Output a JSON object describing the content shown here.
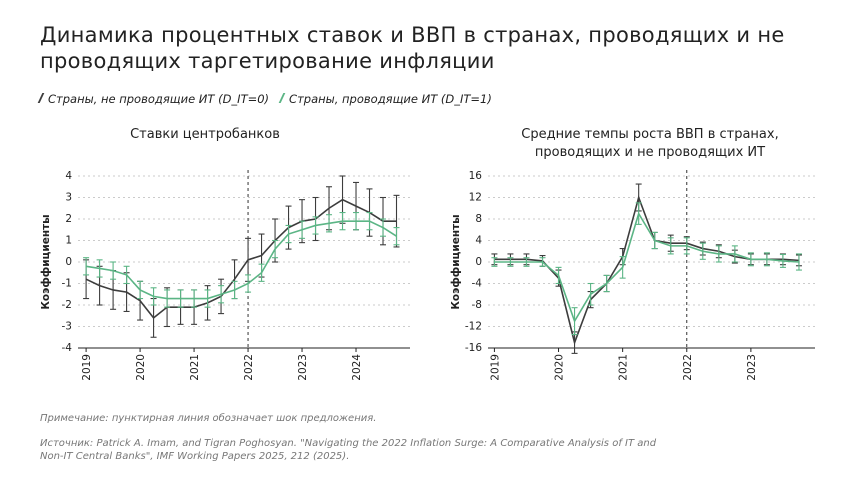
{
  "title": "Динамика процентных ставок и ВВП в странах, проводящих и не проводящих таргетирование инфляции",
  "note": "Примечание: пунктирная линия обозначает шок предложения.",
  "source": "Источник: Patrick A. Imam, and Tigran Poghosyan. \"Navigating the 2022 Inflation Surge: A Comparative Analysis of IT and Non-IT Central Banks\", IMF Working Papers 2025, 212 (2025).",
  "chart_data": [
    {
      "type": "line",
      "title": "Ставки центробанков",
      "ylabel": "Коэффициенты",
      "x": [
        2019,
        2019.25,
        2019.5,
        2019.75,
        2020,
        2020.25,
        2020.5,
        2020.75,
        2021,
        2021.25,
        2021.5,
        2021.75,
        2022,
        2022.25,
        2022.5,
        2022.75,
        2023,
        2023.25,
        2023.5,
        2023.75,
        2024,
        2024.25,
        2024.5,
        2024.75
      ],
      "series": [
        {
          "name": "Страны, не проводящие ИТ (D_IT=0)",
          "color": "#3d3d3d",
          "values": [
            -0.8,
            -1.1,
            -1.3,
            -1.4,
            -1.8,
            -2.6,
            -2.1,
            -2.1,
            -2.1,
            -1.9,
            -1.6,
            -0.8,
            0.1,
            0.3,
            1.0,
            1.6,
            1.9,
            2.0,
            2.5,
            2.9,
            2.6,
            2.3,
            1.9,
            1.9
          ],
          "errors": [
            0.9,
            0.9,
            0.9,
            0.9,
            0.9,
            0.9,
            0.9,
            0.8,
            0.8,
            0.8,
            0.8,
            0.9,
            1.0,
            1.0,
            1.0,
            1.0,
            1.0,
            1.0,
            1.0,
            1.1,
            1.1,
            1.1,
            1.1,
            1.2
          ]
        },
        {
          "name": "Страны, проводящие ИТ (D_IT=1)",
          "color": "#5bb585",
          "values": [
            -0.2,
            -0.3,
            -0.4,
            -0.6,
            -1.3,
            -1.6,
            -1.7,
            -1.7,
            -1.7,
            -1.7,
            -1.5,
            -1.3,
            -1.0,
            -0.5,
            0.6,
            1.3,
            1.5,
            1.7,
            1.8,
            1.9,
            1.9,
            1.9,
            1.6,
            1.2
          ],
          "errors": [
            0.4,
            0.4,
            0.4,
            0.4,
            0.4,
            0.4,
            0.4,
            0.4,
            0.4,
            0.4,
            0.4,
            0.4,
            0.4,
            0.4,
            0.4,
            0.4,
            0.4,
            0.4,
            0.4,
            0.4,
            0.4,
            0.4,
            0.4,
            0.4
          ]
        }
      ],
      "xlim": [
        2018.85,
        2025
      ],
      "xticks": [
        2019,
        2020,
        2021,
        2022,
        2023,
        2024
      ],
      "ylim": [
        -4,
        4
      ],
      "yticks": [
        -4,
        -3,
        -2,
        -1,
        0,
        1,
        2,
        3,
        4
      ],
      "grid": true,
      "vline": 2022
    },
    {
      "type": "line",
      "title": "Средние темпы роста ВВП в странах, проводящих и не проводящих ИТ",
      "ylabel": "Коэффициенты",
      "x": [
        2019,
        2019.25,
        2019.5,
        2019.75,
        2020,
        2020.25,
        2020.5,
        2020.75,
        2021,
        2021.25,
        2021.5,
        2021.75,
        2022,
        2022.25,
        2022.5,
        2022.75,
        2023,
        2023.25,
        2023.5,
        2023.75
      ],
      "series": [
        {
          "name": "Страны, не проводящие ИТ (D_IT=0)",
          "color": "#3d3d3d",
          "values": [
            0.5,
            0.5,
            0.5,
            0.2,
            -3,
            -15,
            -7,
            -4,
            1,
            12,
            4,
            3.5,
            3.5,
            2.5,
            2,
            1,
            0.5,
            0.5,
            0.5,
            0.3
          ],
          "errors": [
            1,
            1,
            1,
            1,
            1.5,
            2,
            1.5,
            1.5,
            1.5,
            2.5,
            1.5,
            1.5,
            1.2,
            1.2,
            1.2,
            1.2,
            1,
            1,
            1,
            1
          ]
        },
        {
          "name": "Страны, проводящие ИТ (D_IT=1)",
          "color": "#5bb585",
          "values": [
            0,
            0,
            0,
            0,
            -2.5,
            -11,
            -6,
            -4,
            -1,
            9,
            4,
            3,
            3,
            2,
            1.5,
            1.5,
            0.5,
            0.5,
            0.2,
            0
          ],
          "errors": [
            0.8,
            0.8,
            0.8,
            0.8,
            1.5,
            2.5,
            2,
            1.5,
            2,
            2,
            1.5,
            1.5,
            1.5,
            1.5,
            1.5,
            1.5,
            1.2,
            1.2,
            1.2,
            1.5
          ]
        }
      ],
      "xlim": [
        2018.9,
        2024
      ],
      "xticks": [
        2019,
        2020,
        2021,
        2022,
        2023
      ],
      "ylim": [
        -16,
        16
      ],
      "yticks": [
        -16,
        -12,
        -8,
        -4,
        0,
        4,
        8,
        12,
        16
      ],
      "grid": true,
      "vline": 2022
    }
  ]
}
